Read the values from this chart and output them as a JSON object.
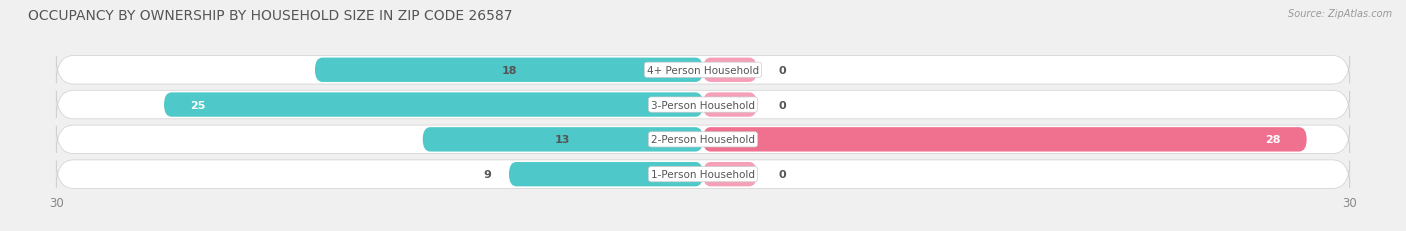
{
  "title": "OCCUPANCY BY OWNERSHIP BY HOUSEHOLD SIZE IN ZIP CODE 26587",
  "source": "Source: ZipAtlas.com",
  "categories": [
    "1-Person Household",
    "2-Person Household",
    "3-Person Household",
    "4+ Person Household"
  ],
  "owner_values": [
    9,
    13,
    25,
    18
  ],
  "renter_values": [
    0,
    28,
    0,
    0
  ],
  "owner_color": "#4EC8C8",
  "renter_color": "#F07090",
  "renter_light_color": "#F5A0B8",
  "axis_min": -30,
  "axis_max": 30,
  "background_color": "#f0f0f0",
  "row_bg_color": "#e8e8e8",
  "row_bg_light": "#f8f8f8",
  "title_fontsize": 10,
  "label_fontsize": 8,
  "tick_fontsize": 8.5,
  "value_fontsize": 8
}
